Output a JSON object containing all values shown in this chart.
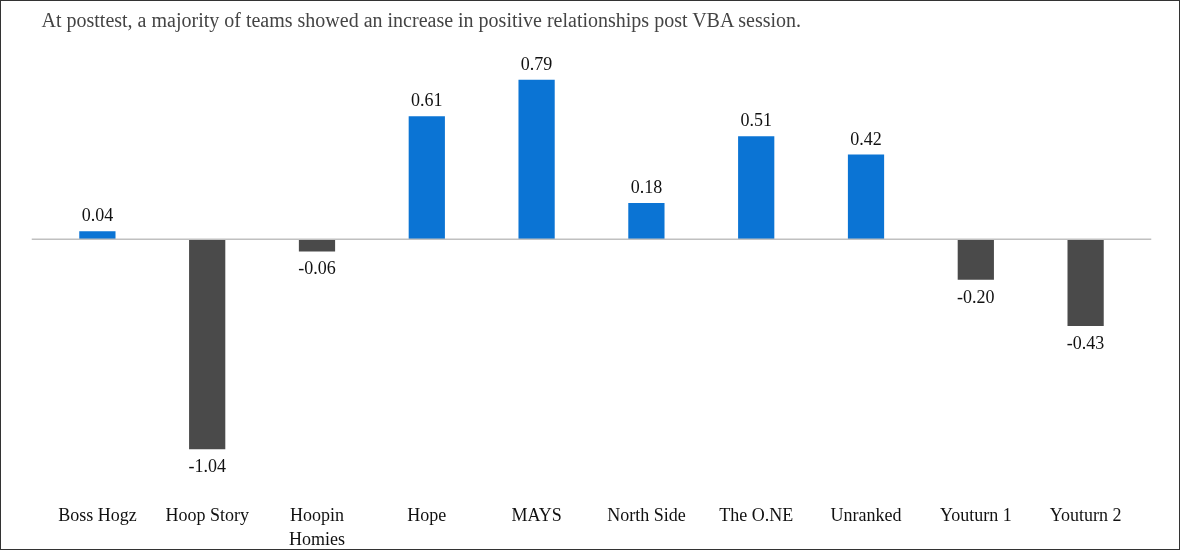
{
  "chart_data": {
    "type": "bar",
    "title": "At posttest, a majority of teams showed an increase in positive relationships post VBA session.",
    "categories": [
      "Boss Hogz",
      "Hoop Story",
      "Hoopin Homies",
      "Hope",
      "MAYS",
      "North Side",
      "The O.NE",
      "Unranked",
      "Youturn 1",
      "Youturn 2"
    ],
    "values": [
      0.04,
      -1.04,
      -0.06,
      0.61,
      0.79,
      0.18,
      0.51,
      0.42,
      -0.2,
      -0.43
    ],
    "value_labels": [
      "0.04",
      "-1.04",
      "-0.06",
      "0.61",
      "0.79",
      "0.18",
      "0.51",
      "0.42",
      "-0.20",
      "-0.43"
    ],
    "colors": [
      "#0b74d4",
      "#4a4a4a",
      "#4a4a4a",
      "#0b74d4",
      "#0b74d4",
      "#0b74d4",
      "#0b74d4",
      "#0b74d4",
      "#4a4a4a",
      "#4a4a4a"
    ],
    "tick_labels": "x"
  }
}
